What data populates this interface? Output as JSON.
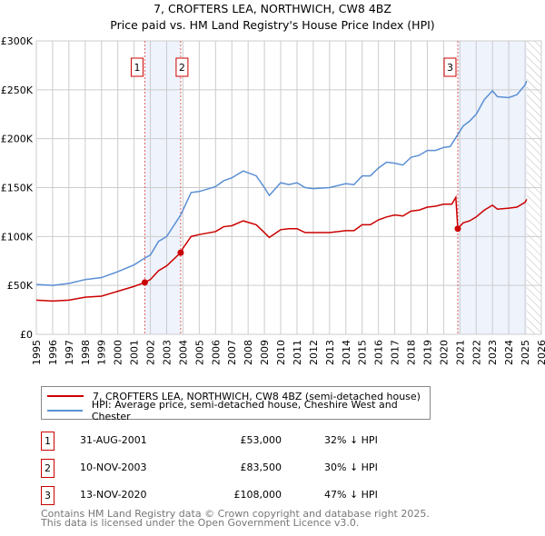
{
  "chart_data": {
    "type": "line",
    "title": "7, CROFTERS LEA, NORTHWICH, CW8 4BZ",
    "subtitle": "Price paid vs. HM Land Registry's House Price Index (HPI)",
    "xlim": [
      1995,
      2026
    ],
    "ylim": [
      0,
      300000
    ],
    "x_ticks": [
      "1995",
      "1996",
      "1997",
      "1998",
      "1999",
      "2000",
      "2001",
      "2002",
      "2003",
      "2004",
      "2005",
      "2006",
      "2007",
      "2008",
      "2009",
      "2010",
      "2011",
      "2012",
      "2013",
      "2014",
      "2015",
      "2016",
      "2017",
      "2018",
      "2019",
      "2020",
      "2021",
      "2022",
      "2023",
      "2024",
      "2025",
      "2026"
    ],
    "y_ticks": [
      {
        "v": 0,
        "l": "£0"
      },
      {
        "v": 50000,
        "l": "£50K"
      },
      {
        "v": 100000,
        "l": "£100K"
      },
      {
        "v": 150000,
        "l": "£150K"
      },
      {
        "v": 200000,
        "l": "£200K"
      },
      {
        "v": 250000,
        "l": "£250K"
      },
      {
        "v": 300000,
        "l": "£300K"
      }
    ],
    "grid": true,
    "shaded_ranges": [
      [
        2001.66,
        2003.86
      ],
      [
        2020.87,
        2025.1
      ]
    ],
    "hatched_range": [
      2025.1,
      2026
    ],
    "series": [
      {
        "name": "7, CROFTERS LEA, NORTHWICH, CW8 4BZ (semi-detached house)",
        "color": "#cc0000",
        "points": [
          [
            1995,
            35
          ],
          [
            1996,
            34
          ],
          [
            1997,
            35
          ],
          [
            1998,
            38
          ],
          [
            1999,
            39
          ],
          [
            2000,
            44
          ],
          [
            2001,
            49
          ],
          [
            2001.66,
            53
          ],
          [
            2002,
            56
          ],
          [
            2002.5,
            65
          ],
          [
            2003,
            70
          ],
          [
            2003.86,
            83.5
          ],
          [
            2004,
            88
          ],
          [
            2004.5,
            100
          ],
          [
            2005,
            102
          ],
          [
            2006,
            105
          ],
          [
            2006.5,
            110
          ],
          [
            2007,
            111
          ],
          [
            2007.7,
            116
          ],
          [
            2008.5,
            112
          ],
          [
            2009,
            104
          ],
          [
            2009.3,
            99
          ],
          [
            2010,
            107
          ],
          [
            2010.5,
            108
          ],
          [
            2011,
            108
          ],
          [
            2011.5,
            104
          ],
          [
            2012,
            104
          ],
          [
            2013,
            104
          ],
          [
            2014,
            106
          ],
          [
            2014.5,
            106
          ],
          [
            2015,
            112
          ],
          [
            2015.5,
            112
          ],
          [
            2016,
            117
          ],
          [
            2016.5,
            120
          ],
          [
            2017,
            122
          ],
          [
            2017.5,
            121
          ],
          [
            2018,
            126
          ],
          [
            2018.5,
            127
          ],
          [
            2019,
            130
          ],
          [
            2019.5,
            131
          ],
          [
            2020,
            133
          ],
          [
            2020.5,
            133
          ],
          [
            2020.75,
            140
          ],
          [
            2020.87,
            108
          ],
          [
            2021.2,
            114
          ],
          [
            2021.6,
            116
          ],
          [
            2022,
            120
          ],
          [
            2022.5,
            127
          ],
          [
            2023,
            132
          ],
          [
            2023.3,
            128
          ],
          [
            2024,
            129
          ],
          [
            2024.5,
            130
          ],
          [
            2025,
            135
          ],
          [
            2025.1,
            138
          ]
        ]
      },
      {
        "name": "HPI: Average price, semi-detached house, Cheshire West and Chester",
        "color": "#5b8fd4",
        "points": [
          [
            1995,
            51
          ],
          [
            1996,
            50
          ],
          [
            1997,
            52
          ],
          [
            1998,
            56
          ],
          [
            1999,
            58
          ],
          [
            2000,
            64
          ],
          [
            2001,
            71
          ],
          [
            2001.66,
            78
          ],
          [
            2002,
            81
          ],
          [
            2002.5,
            95
          ],
          [
            2003,
            100
          ],
          [
            2003.86,
            122
          ],
          [
            2004,
            127
          ],
          [
            2004.5,
            145
          ],
          [
            2005,
            146
          ],
          [
            2006,
            151
          ],
          [
            2006.5,
            157
          ],
          [
            2007,
            160
          ],
          [
            2007.7,
            167
          ],
          [
            2008.5,
            162
          ],
          [
            2009,
            150
          ],
          [
            2009.3,
            142
          ],
          [
            2010,
            155
          ],
          [
            2010.5,
            153
          ],
          [
            2011,
            155
          ],
          [
            2011.5,
            150
          ],
          [
            2012,
            149
          ],
          [
            2013,
            150
          ],
          [
            2014,
            154
          ],
          [
            2014.5,
            153
          ],
          [
            2015,
            162
          ],
          [
            2015.5,
            162
          ],
          [
            2016,
            170
          ],
          [
            2016.5,
            176
          ],
          [
            2017,
            175
          ],
          [
            2017.5,
            173
          ],
          [
            2018,
            181
          ],
          [
            2018.5,
            183
          ],
          [
            2019,
            188
          ],
          [
            2019.5,
            188
          ],
          [
            2020,
            191
          ],
          [
            2020.4,
            192
          ],
          [
            2020.9,
            205
          ],
          [
            2021.2,
            213
          ],
          [
            2021.6,
            218
          ],
          [
            2022,
            225
          ],
          [
            2022.5,
            240
          ],
          [
            2023,
            249
          ],
          [
            2023.3,
            243
          ],
          [
            2024,
            242
          ],
          [
            2024.5,
            245
          ],
          [
            2025,
            255
          ],
          [
            2025.1,
            259
          ]
        ]
      }
    ],
    "y_unit": "thousands GBP",
    "sales": [
      {
        "label": "1",
        "x": 2001.66,
        "y": 53
      },
      {
        "label": "2",
        "x": 2003.86,
        "y": 83.5
      },
      {
        "label": "3",
        "x": 2020.87,
        "y": 108
      }
    ]
  },
  "legend": {
    "property": "7, CROFTERS LEA, NORTHWICH, CW8 4BZ (semi-detached house)",
    "hpi": "HPI: Average price, semi-detached house, Cheshire West and Chester"
  },
  "transactions": [
    {
      "num": "1",
      "date": "31-AUG-2001",
      "price": "£53,000",
      "hpi": "32% ↓ HPI"
    },
    {
      "num": "2",
      "date": "10-NOV-2003",
      "price": "£83,500",
      "hpi": "30% ↓ HPI"
    },
    {
      "num": "3",
      "date": "13-NOV-2020",
      "price": "£108,000",
      "hpi": "47% ↓ HPI"
    }
  ],
  "footer": [
    "Contains HM Land Registry data © Crown copyright and database right 2025.",
    "This data is licensed under the Open Government Licence v3.0."
  ],
  "colors": {
    "red": "#cc0000",
    "blue": "#5b8fd4",
    "shade": "#eef3fc"
  }
}
